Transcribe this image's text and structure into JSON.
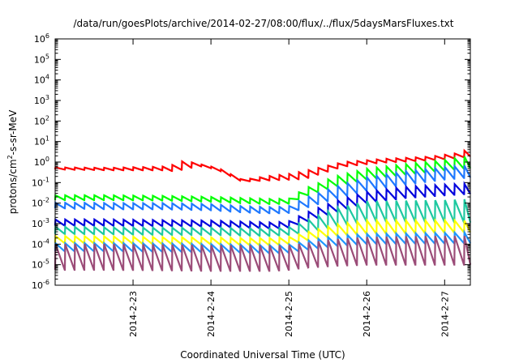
{
  "chart_data": {
    "type": "line",
    "title": "/data/run/goesPlots/archive/2014-02-27/08:00/flux/../flux/5daysMarsFluxes.txt",
    "xlabel": "Coordinated Universal Time (UTC)",
    "ylabel": {
      "base": "protons/cm",
      "sup": "2",
      "rest": "-s-sr-MeV"
    },
    "y_scale": "log",
    "ylim_exp": [
      -6,
      6
    ],
    "xlim": [
      0.0,
      5.33
    ],
    "x_ticks": [
      {
        "pos": 1,
        "label": "2014-2-23"
      },
      {
        "pos": 2,
        "label": "2014-2-24"
      },
      {
        "pos": 3,
        "label": "2014-2-25"
      },
      {
        "pos": 4,
        "label": "2014-2-26"
      },
      {
        "pos": 5,
        "label": "2014-2-27"
      }
    ],
    "grid": false,
    "legend": "none",
    "sawtooth_period_days": 0.125,
    "series": [
      {
        "color": "#ff0000",
        "low": [
          [
            0,
            -0.36
          ],
          [
            0.7,
            -0.4
          ],
          [
            1.4,
            -0.4
          ],
          [
            1.55,
            -0.45
          ],
          [
            1.7,
            -0.3
          ],
          [
            1.9,
            -0.2
          ],
          [
            2.1,
            -0.4
          ],
          [
            2.4,
            -0.95
          ],
          [
            2.7,
            -0.9
          ],
          [
            3.0,
            -0.86
          ],
          [
            3.2,
            -0.83
          ],
          [
            3.7,
            -0.22
          ],
          [
            4.2,
            -0.03
          ],
          [
            4.8,
            0.08
          ],
          [
            5.2,
            0.2
          ],
          [
            5.33,
            0.28
          ]
        ],
        "high": [
          [
            0,
            -0.26
          ],
          [
            0.7,
            -0.28
          ],
          [
            1.4,
            -0.22
          ],
          [
            1.5,
            -0.18
          ],
          [
            1.52,
            0.03
          ],
          [
            1.7,
            0.03
          ],
          [
            2.1,
            -0.3
          ],
          [
            2.4,
            -0.87
          ],
          [
            2.7,
            -0.7
          ],
          [
            3.0,
            -0.58
          ],
          [
            3.2,
            -0.44
          ],
          [
            3.7,
            0.0
          ],
          [
            4.2,
            0.15
          ],
          [
            4.8,
            0.26
          ],
          [
            5.2,
            0.45
          ],
          [
            5.33,
            0.7
          ]
        ]
      },
      {
        "color": "#00ff00",
        "low": [
          [
            0,
            -1.85
          ],
          [
            0.7,
            -1.85
          ],
          [
            1.4,
            -1.87
          ],
          [
            2.0,
            -1.93
          ],
          [
            2.4,
            -2.0
          ],
          [
            2.8,
            -2.05
          ],
          [
            3.0,
            -2.03
          ],
          [
            3.2,
            -1.68
          ],
          [
            3.6,
            -1.2
          ],
          [
            4.0,
            -0.85
          ],
          [
            4.5,
            -0.62
          ],
          [
            5.0,
            -0.42
          ],
          [
            5.33,
            -0.3
          ]
        ],
        "high": [
          [
            0,
            -1.62
          ],
          [
            0.7,
            -1.62
          ],
          [
            1.4,
            -1.65
          ],
          [
            2.0,
            -1.7
          ],
          [
            2.4,
            -1.75
          ],
          [
            2.8,
            -1.8
          ],
          [
            3.0,
            -1.78
          ],
          [
            3.2,
            -1.3
          ],
          [
            3.6,
            -0.7
          ],
          [
            4.0,
            -0.33
          ],
          [
            4.5,
            -0.1
          ],
          [
            5.0,
            0.1
          ],
          [
            5.33,
            0.32
          ]
        ]
      },
      {
        "color": "#1e78ff",
        "low": [
          [
            0,
            -2.25
          ],
          [
            0.7,
            -2.3
          ],
          [
            1.4,
            -2.3
          ],
          [
            2.0,
            -2.35
          ],
          [
            2.4,
            -2.45
          ],
          [
            2.8,
            -2.5
          ],
          [
            3.0,
            -2.48
          ],
          [
            3.2,
            -2.25
          ],
          [
            3.6,
            -1.8
          ],
          [
            4.0,
            -1.4
          ],
          [
            4.5,
            -1.1
          ],
          [
            5.0,
            -0.85
          ],
          [
            5.33,
            -0.75
          ]
        ],
        "high": [
          [
            0,
            -1.98
          ],
          [
            0.7,
            -2.0
          ],
          [
            1.4,
            -2.0
          ],
          [
            2.0,
            -2.05
          ],
          [
            2.4,
            -2.15
          ],
          [
            2.8,
            -2.2
          ],
          [
            3.0,
            -2.15
          ],
          [
            3.2,
            -1.75
          ],
          [
            3.6,
            -1.2
          ],
          [
            4.0,
            -0.75
          ],
          [
            4.5,
            -0.45
          ],
          [
            5.0,
            -0.25
          ],
          [
            5.33,
            -0.15
          ]
        ]
      },
      {
        "color": "#0000dd",
        "low": [
          [
            0,
            -3.1
          ],
          [
            0.7,
            -3.1
          ],
          [
            1.4,
            -3.12
          ],
          [
            2.0,
            -3.15
          ],
          [
            2.4,
            -3.2
          ],
          [
            2.8,
            -3.25
          ],
          [
            3.0,
            -3.2
          ],
          [
            3.2,
            -2.95
          ],
          [
            3.6,
            -2.45
          ],
          [
            4.0,
            -2.0
          ],
          [
            4.5,
            -1.75
          ],
          [
            5.0,
            -1.62
          ],
          [
            5.33,
            -1.55
          ]
        ],
        "high": [
          [
            0,
            -2.8
          ],
          [
            0.7,
            -2.8
          ],
          [
            1.4,
            -2.83
          ],
          [
            2.0,
            -2.85
          ],
          [
            2.4,
            -2.9
          ],
          [
            2.8,
            -2.95
          ],
          [
            3.0,
            -2.88
          ],
          [
            3.2,
            -2.5
          ],
          [
            3.6,
            -1.9
          ],
          [
            4.0,
            -1.45
          ],
          [
            4.5,
            -1.2
          ],
          [
            5.0,
            -1.1
          ],
          [
            5.33,
            -1.05
          ]
        ]
      },
      {
        "color": "#1ec8a0",
        "low": [
          [
            0,
            -3.5
          ],
          [
            0.7,
            -3.52
          ],
          [
            1.4,
            -3.55
          ],
          [
            2.0,
            -3.55
          ],
          [
            2.4,
            -3.58
          ],
          [
            2.8,
            -3.6
          ],
          [
            3.0,
            -3.55
          ],
          [
            3.2,
            -3.45
          ],
          [
            3.6,
            -3.15
          ],
          [
            4.0,
            -2.9
          ],
          [
            4.5,
            -2.9
          ],
          [
            5.0,
            -2.92
          ],
          [
            5.33,
            -2.95
          ]
        ],
        "high": [
          [
            0,
            -3.15
          ],
          [
            0.7,
            -3.18
          ],
          [
            1.4,
            -3.2
          ],
          [
            2.0,
            -3.2
          ],
          [
            2.4,
            -3.22
          ],
          [
            2.8,
            -3.25
          ],
          [
            3.0,
            -3.18
          ],
          [
            3.2,
            -2.9
          ],
          [
            3.6,
            -2.25
          ],
          [
            4.0,
            -1.9
          ],
          [
            4.5,
            -1.88
          ],
          [
            5.0,
            -1.85
          ],
          [
            5.33,
            -1.8
          ]
        ]
      },
      {
        "color": "#ffff00",
        "low": [
          [
            0,
            -3.95
          ],
          [
            0.7,
            -3.97
          ],
          [
            1.4,
            -4.0
          ],
          [
            2.0,
            -4.02
          ],
          [
            2.4,
            -4.05
          ],
          [
            2.8,
            -4.05
          ],
          [
            3.0,
            -4.0
          ],
          [
            3.2,
            -3.85
          ],
          [
            3.6,
            -3.6
          ],
          [
            4.0,
            -3.5
          ],
          [
            4.5,
            -3.48
          ],
          [
            5.0,
            -3.45
          ],
          [
            5.33,
            -3.42
          ]
        ],
        "high": [
          [
            0,
            -3.6
          ],
          [
            0.7,
            -3.62
          ],
          [
            1.4,
            -3.65
          ],
          [
            2.0,
            -3.67
          ],
          [
            2.4,
            -3.7
          ],
          [
            2.8,
            -3.7
          ],
          [
            3.0,
            -3.65
          ],
          [
            3.2,
            -3.45
          ],
          [
            3.6,
            -3.05
          ],
          [
            4.0,
            -2.85
          ],
          [
            4.5,
            -2.85
          ],
          [
            5.0,
            -2.85
          ],
          [
            5.33,
            -2.85
          ]
        ]
      },
      {
        "color": "#1e96ff",
        "low": [
          [
            0,
            -4.35
          ],
          [
            0.7,
            -4.35
          ],
          [
            1.4,
            -4.37
          ],
          [
            2.0,
            -4.4
          ],
          [
            2.4,
            -4.42
          ],
          [
            2.8,
            -4.45
          ],
          [
            3.0,
            -4.42
          ],
          [
            3.2,
            -4.3
          ],
          [
            3.6,
            -4.1
          ],
          [
            4.0,
            -4.0
          ],
          [
            4.5,
            -3.98
          ],
          [
            5.0,
            -3.97
          ],
          [
            5.33,
            -3.95
          ]
        ],
        "high": [
          [
            0,
            -3.95
          ],
          [
            0.7,
            -3.95
          ],
          [
            1.4,
            -3.97
          ],
          [
            2.0,
            -4.0
          ],
          [
            2.4,
            -4.02
          ],
          [
            2.8,
            -4.05
          ],
          [
            3.0,
            -4.02
          ],
          [
            3.2,
            -3.85
          ],
          [
            3.6,
            -3.6
          ],
          [
            4.0,
            -3.5
          ],
          [
            4.5,
            -3.48
          ],
          [
            5.0,
            -3.45
          ],
          [
            5.33,
            -3.42
          ]
        ]
      },
      {
        "color": "#9b4c78",
        "low": [
          [
            0,
            -5.25
          ],
          [
            0.7,
            -5.25
          ],
          [
            1.4,
            -5.27
          ],
          [
            2.0,
            -5.3
          ],
          [
            2.4,
            -5.3
          ],
          [
            2.8,
            -5.3
          ],
          [
            3.0,
            -5.25
          ],
          [
            3.2,
            -5.15
          ],
          [
            3.6,
            -5.05
          ],
          [
            4.0,
            -5.0
          ],
          [
            4.5,
            -5.0
          ],
          [
            5.0,
            -5.0
          ],
          [
            5.33,
            -5.0
          ]
        ],
        "high": [
          [
            0,
            -4.0
          ],
          [
            0.7,
            -4.0
          ],
          [
            1.4,
            -4.02
          ],
          [
            2.0,
            -4.05
          ],
          [
            2.4,
            -4.05
          ],
          [
            2.8,
            -4.07
          ],
          [
            3.0,
            -4.05
          ],
          [
            3.2,
            -3.95
          ],
          [
            3.6,
            -3.75
          ],
          [
            4.0,
            -3.65
          ],
          [
            4.5,
            -3.62
          ],
          [
            5.0,
            -3.6
          ],
          [
            5.33,
            -3.6
          ]
        ]
      }
    ]
  }
}
